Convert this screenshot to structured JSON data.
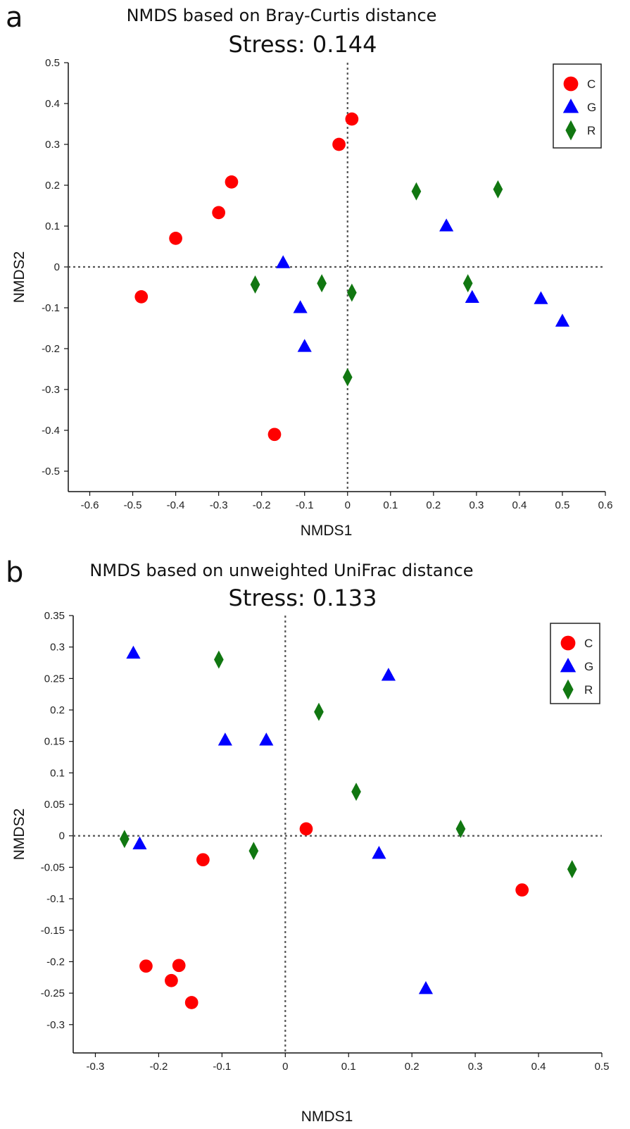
{
  "chart_data": [
    {
      "type": "scatter",
      "panel_label": "a",
      "title": "NMDS based on Bray-Curtis distance",
      "subtitle": "Stress: 0.144",
      "xlabel": "NMDS1",
      "ylabel": "NMDS2",
      "xlim": [
        -0.65,
        0.6
      ],
      "ylim": [
        -0.55,
        0.5
      ],
      "xticks": [
        -0.6,
        -0.5,
        -0.4,
        -0.3,
        -0.2,
        -0.1,
        0,
        0.1,
        0.2,
        0.3,
        0.4,
        0.5,
        0.6
      ],
      "yticks": [
        -0.5,
        -0.4,
        -0.3,
        -0.2,
        -0.1,
        0,
        0.1,
        0.2,
        0.3,
        0.4,
        0.5
      ],
      "reference_lines": {
        "x": 0,
        "y": 0,
        "style": "dotted"
      },
      "legend_position": "top-right",
      "series": [
        {
          "name": "C",
          "marker": "circle",
          "color": "#ff0000",
          "points": [
            [
              -0.48,
              -0.073
            ],
            [
              -0.4,
              0.07
            ],
            [
              -0.3,
              0.133
            ],
            [
              -0.27,
              0.208
            ],
            [
              -0.02,
              0.3
            ],
            [
              0.01,
              0.362
            ],
            [
              -0.17,
              -0.41
            ]
          ]
        },
        {
          "name": "G",
          "marker": "triangle",
          "color": "#0000ff",
          "points": [
            [
              -0.15,
              0.01
            ],
            [
              -0.11,
              -0.1
            ],
            [
              -0.1,
              -0.195
            ],
            [
              0.23,
              0.1
            ],
            [
              0.29,
              -0.075
            ],
            [
              0.45,
              -0.078
            ],
            [
              0.5,
              -0.133
            ]
          ]
        },
        {
          "name": "R",
          "marker": "diamond",
          "color": "#117711",
          "points": [
            [
              -0.215,
              -0.043
            ],
            [
              -0.06,
              -0.04
            ],
            [
              0.01,
              -0.063
            ],
            [
              0.0,
              -0.27
            ],
            [
              0.16,
              0.185
            ],
            [
              0.35,
              0.19
            ],
            [
              0.28,
              -0.04
            ]
          ]
        }
      ]
    },
    {
      "type": "scatter",
      "panel_label": "b",
      "title": "NMDS based on unweighted UniFrac distance",
      "subtitle": "Stress: 0.133",
      "xlabel": "NMDS1",
      "ylabel": "NMDS2",
      "xlim": [
        -0.335,
        0.5
      ],
      "ylim": [
        -0.345,
        0.35
      ],
      "xticks": [
        -0.3,
        -0.2,
        -0.1,
        0,
        0.1,
        0.2,
        0.3,
        0.4,
        0.5
      ],
      "yticks": [
        -0.3,
        -0.25,
        -0.2,
        -0.15,
        -0.1,
        -0.05,
        0,
        0.05,
        0.1,
        0.15,
        0.2,
        0.25,
        0.3,
        0.35
      ],
      "reference_lines": {
        "x": 0,
        "y": 0,
        "style": "dotted"
      },
      "legend_position": "top-right",
      "series": [
        {
          "name": "C",
          "marker": "circle",
          "color": "#ff0000",
          "points": [
            [
              0.033,
              0.011
            ],
            [
              -0.13,
              -0.038
            ],
            [
              -0.22,
              -0.207
            ],
            [
              -0.168,
              -0.206
            ],
            [
              -0.18,
              -0.23
            ],
            [
              -0.148,
              -0.265
            ],
            [
              0.374,
              -0.086
            ]
          ]
        },
        {
          "name": "G",
          "marker": "triangle",
          "color": "#0000ff",
          "points": [
            [
              -0.24,
              0.29
            ],
            [
              -0.095,
              0.152
            ],
            [
              -0.03,
              0.152
            ],
            [
              0.163,
              0.255
            ],
            [
              -0.23,
              -0.013
            ],
            [
              0.148,
              -0.028
            ],
            [
              0.222,
              -0.243
            ]
          ]
        },
        {
          "name": "R",
          "marker": "diamond",
          "color": "#117711",
          "points": [
            [
              -0.105,
              0.28
            ],
            [
              0.053,
              0.197
            ],
            [
              0.112,
              0.07
            ],
            [
              0.277,
              0.011
            ],
            [
              -0.254,
              -0.005
            ],
            [
              -0.05,
              -0.024
            ],
            [
              0.453,
              -0.053
            ]
          ]
        }
      ]
    }
  ]
}
